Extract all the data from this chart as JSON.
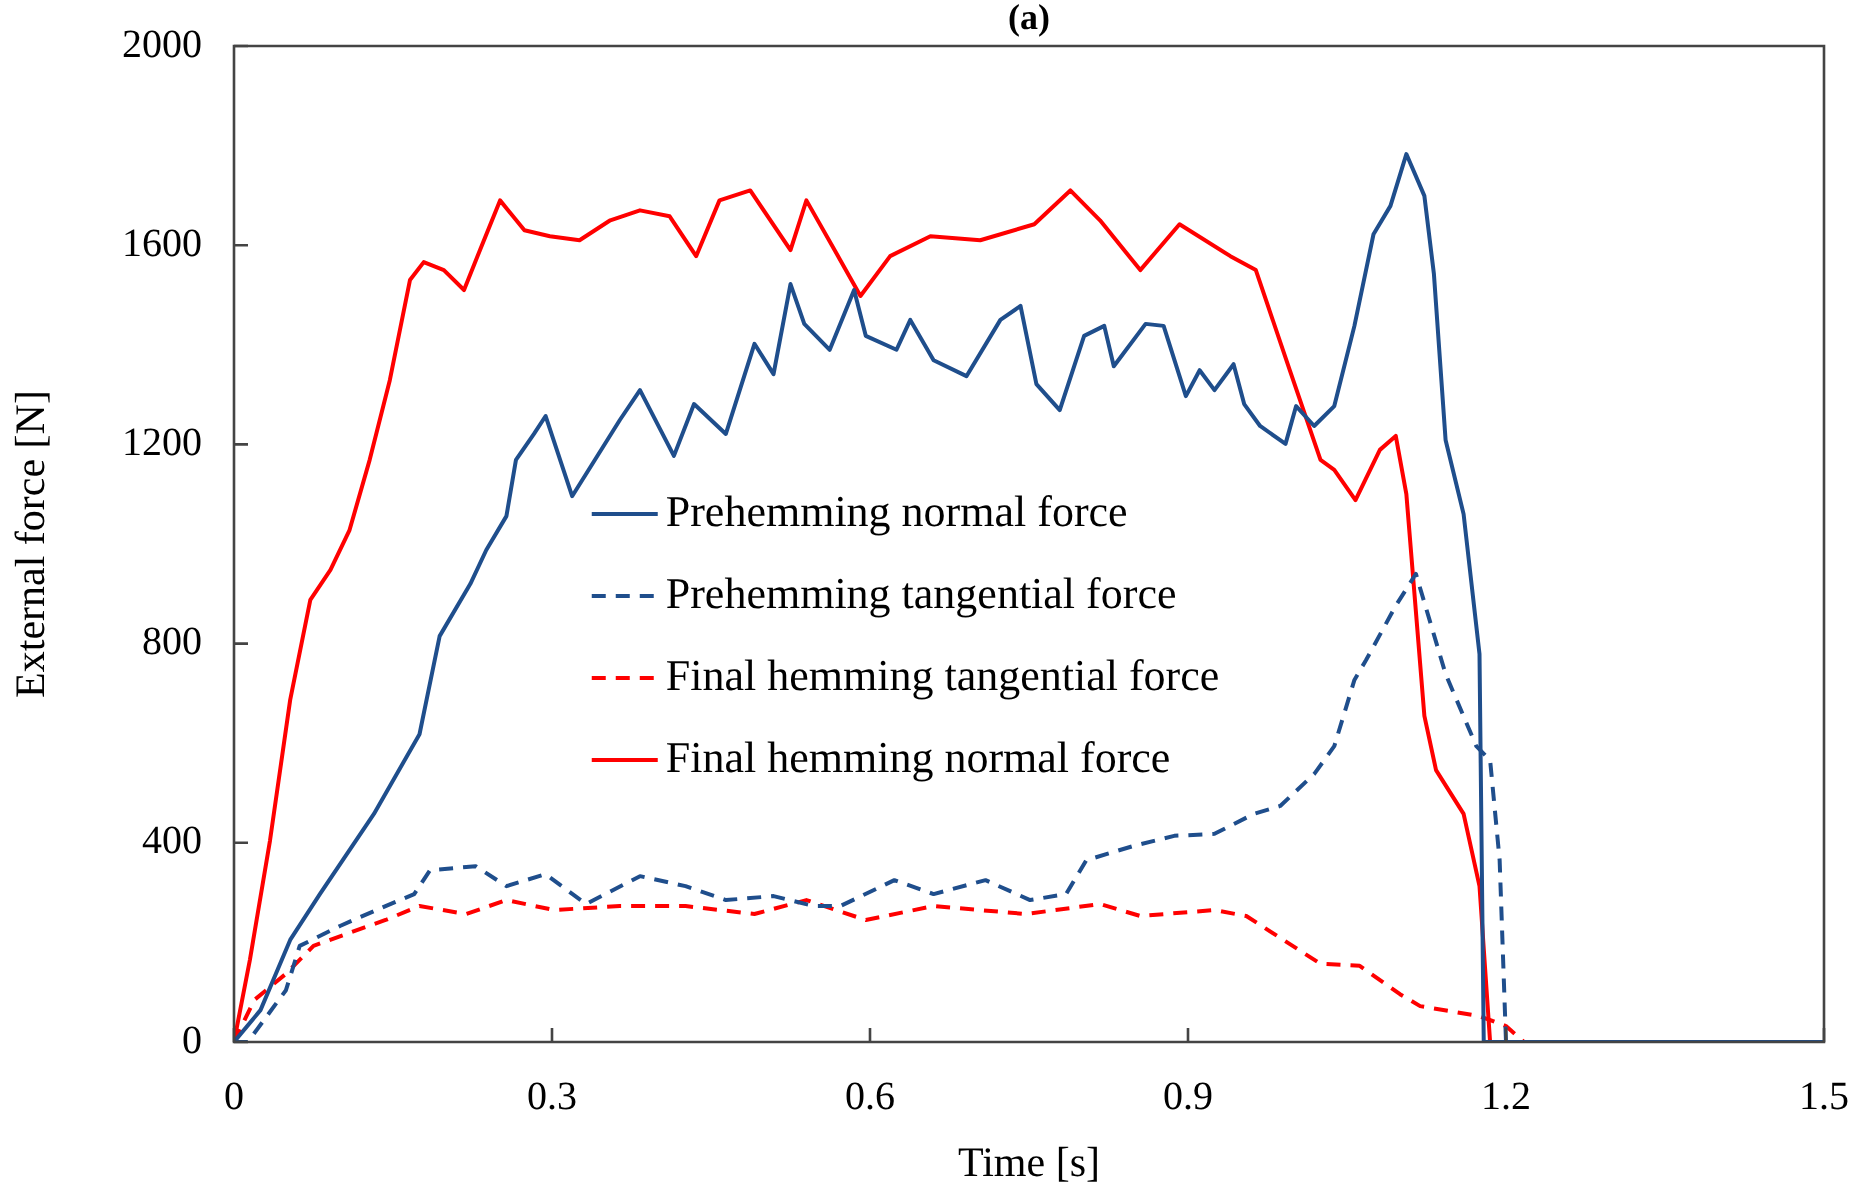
{
  "chart_data": {
    "type": "line",
    "title": "(a)",
    "xlabel": "Time [s]",
    "ylabel": "External force [N]",
    "xlim": [
      0,
      1.5
    ],
    "xticks": [
      0,
      0.3,
      0.6,
      0.9,
      1.2,
      1.5
    ],
    "ylim": [
      0,
      2000
    ],
    "yticks": [
      0,
      400,
      800,
      1200,
      1600,
      2000
    ],
    "grid": false,
    "legend": "center",
    "marker": "none",
    "series": [
      {
        "name": "Prehemming normal force",
        "color": "#1f4e8c",
        "line_style": "solid",
        "x": [
          0,
          0.025,
          0.053,
          0.081,
          0.132,
          0.175,
          0.194,
          0.223,
          0.238,
          0.257,
          0.266,
          0.283,
          0.294,
          0.319,
          0.364,
          0.383,
          0.415,
          0.434,
          0.464,
          0.491,
          0.509,
          0.525,
          0.538,
          0.562,
          0.585,
          0.596,
          0.625,
          0.638,
          0.66,
          0.691,
          0.723,
          0.742,
          0.757,
          0.779,
          0.802,
          0.821,
          0.83,
          0.86,
          0.877,
          0.898,
          0.911,
          0.925,
          0.943,
          0.953,
          0.968,
          0.992,
          1.002,
          1.019,
          1.038,
          1.057,
          1.075,
          1.091,
          1.106,
          1.123,
          1.132,
          1.143,
          1.16,
          1.175,
          1.179,
          1.5
        ],
        "values": [
          0,
          64,
          205,
          297,
          458,
          618,
          815,
          920,
          988,
          1056,
          1169,
          1221,
          1257,
          1096,
          1249,
          1309,
          1177,
          1281,
          1221,
          1402,
          1341,
          1522,
          1442,
          1390,
          1510,
          1418,
          1390,
          1450,
          1369,
          1337,
          1450,
          1478,
          1321,
          1269,
          1418,
          1438,
          1357,
          1442,
          1438,
          1297,
          1349,
          1309,
          1361,
          1281,
          1237,
          1201,
          1277,
          1237,
          1277,
          1438,
          1622,
          1679,
          1783,
          1699,
          1542,
          1209,
          1060,
          779,
          0,
          0
        ]
      },
      {
        "name": "Prehemming tangential force",
        "color": "#1f4e8c",
        "line_style": "dashed",
        "x": [
          0,
          0.013,
          0.049,
          0.062,
          0.1,
          0.143,
          0.17,
          0.185,
          0.228,
          0.257,
          0.294,
          0.332,
          0.383,
          0.426,
          0.464,
          0.509,
          0.547,
          0.572,
          0.623,
          0.66,
          0.709,
          0.751,
          0.785,
          0.804,
          0.849,
          0.887,
          0.925,
          0.962,
          0.987,
          1.019,
          1.038,
          1.057,
          1.068,
          1.096,
          1.115,
          1.143,
          1.172,
          1.185,
          1.194,
          1.2,
          1.5
        ],
        "values": [
          0,
          0,
          104,
          193,
          233,
          273,
          297,
          345,
          353,
          313,
          337,
          277,
          333,
          313,
          285,
          293,
          273,
          273,
          325,
          297,
          325,
          285,
          297,
          365,
          394,
          414,
          418,
          458,
          474,
          538,
          594,
          727,
          767,
          876,
          940,
          739,
          594,
          566,
          365,
          0,
          0
        ]
      },
      {
        "name": "Final hemming tangential force",
        "color": "#ff0000",
        "line_style": "dashed",
        "x": [
          0,
          0.019,
          0.049,
          0.075,
          0.106,
          0.143,
          0.175,
          0.219,
          0.257,
          0.302,
          0.364,
          0.426,
          0.491,
          0.54,
          0.596,
          0.66,
          0.747,
          0.817,
          0.855,
          0.925,
          0.955,
          1.025,
          1.062,
          1.1,
          1.119,
          1.175,
          1.2,
          1.217,
          1.5
        ],
        "values": [
          0,
          84,
          137,
          193,
          217,
          245,
          273,
          257,
          285,
          265,
          273,
          273,
          257,
          285,
          245,
          273,
          257,
          277,
          253,
          265,
          253,
          157,
          153,
          96,
          72,
          52,
          32,
          0,
          0
        ]
      },
      {
        "name": "Final hemming normal force",
        "color": "#ff0000",
        "line_style": "solid",
        "x": [
          0,
          0.015,
          0.034,
          0.053,
          0.072,
          0.091,
          0.109,
          0.128,
          0.147,
          0.166,
          0.179,
          0.198,
          0.217,
          0.232,
          0.251,
          0.274,
          0.298,
          0.326,
          0.355,
          0.383,
          0.411,
          0.436,
          0.458,
          0.487,
          0.525,
          0.54,
          0.572,
          0.591,
          0.619,
          0.657,
          0.704,
          0.755,
          0.789,
          0.817,
          0.855,
          0.892,
          0.94,
          0.964,
          0.996,
          1.025,
          1.038,
          1.058,
          1.081,
          1.096,
          1.106,
          1.123,
          1.134,
          1.16,
          1.175,
          1.185,
          1.5
        ],
        "values": [
          0,
          165,
          405,
          687,
          888,
          948,
          1028,
          1169,
          1329,
          1530,
          1566,
          1550,
          1510,
          1590,
          1690,
          1630,
          1618,
          1610,
          1650,
          1670,
          1658,
          1578,
          1690,
          1710,
          1590,
          1690,
          1570,
          1498,
          1578,
          1618,
          1610,
          1642,
          1710,
          1650,
          1550,
          1642,
          1578,
          1550,
          1349,
          1169,
          1149,
          1088,
          1189,
          1217,
          1100,
          655,
          546,
          458,
          313,
          0,
          0
        ]
      }
    ]
  }
}
